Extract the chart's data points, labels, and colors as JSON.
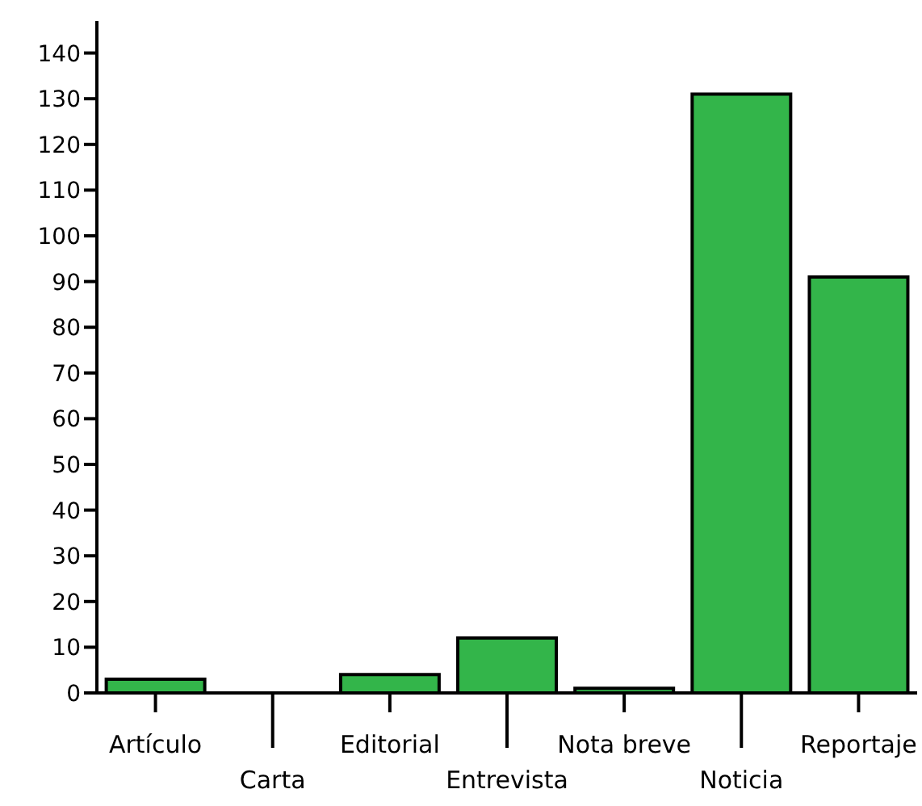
{
  "chart_data": {
    "type": "bar",
    "categories": [
      "Artículo",
      "Carta",
      "Editorial",
      "Entrevista",
      "Nota breve",
      "Noticia",
      "Reportaje"
    ],
    "values": [
      3,
      0,
      4,
      12,
      1,
      131,
      91
    ],
    "color": "#33b54a",
    "ylim": [
      0,
      147
    ],
    "yticks": [
      0,
      10,
      20,
      30,
      40,
      50,
      60,
      70,
      80,
      90,
      100,
      110,
      120,
      130,
      140
    ],
    "grid": false,
    "legend": false
  }
}
